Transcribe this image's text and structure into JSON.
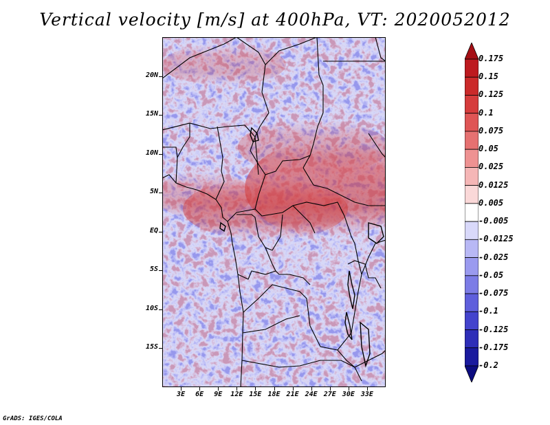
{
  "title": "Vertical velocity [m/s] at 400hPa, VT: 2020052012",
  "credit": "GrADS: IGES/COLA",
  "map": {
    "lon_range": [
      0,
      36
    ],
    "lat_range": [
      -20,
      25
    ],
    "lat_ticks": [
      {
        "label": "20N",
        "lat": 20
      },
      {
        "label": "15N",
        "lat": 15
      },
      {
        "label": "10N",
        "lat": 10
      },
      {
        "label": "5N",
        "lat": 5
      },
      {
        "label": "EQ",
        "lat": 0
      },
      {
        "label": "5S",
        "lat": -5
      },
      {
        "label": "10S",
        "lat": -10
      },
      {
        "label": "15S",
        "lat": -15
      }
    ],
    "lon_ticks": [
      {
        "label": "3E",
        "lon": 3
      },
      {
        "label": "6E",
        "lon": 6
      },
      {
        "label": "9E",
        "lon": 9
      },
      {
        "label": "12E",
        "lon": 12
      },
      {
        "label": "15E",
        "lon": 15
      },
      {
        "label": "18E",
        "lon": 18
      },
      {
        "label": "21E",
        "lon": 21
      },
      {
        "label": "24E",
        "lon": 24
      },
      {
        "label": "27E",
        "lon": 27
      },
      {
        "label": "30E",
        "lon": 30
      },
      {
        "label": "33E",
        "lon": 33
      }
    ]
  },
  "colorbar": {
    "labels": [
      "0.175",
      "0.15",
      "0.125",
      "0.1",
      "0.075",
      "0.05",
      "0.025",
      "0.0125",
      "0.005",
      "-0.005",
      "-0.0125",
      "-0.025",
      "-0.05",
      "-0.075",
      "-0.1",
      "-0.125",
      "-0.175",
      "-0.2"
    ],
    "colors": [
      "#a50f15",
      "#bd1a1f",
      "#cb2a2a",
      "#d63c3c",
      "#df5555",
      "#e67171",
      "#ee9292",
      "#f5b6b6",
      "#fad8d8",
      "#ffffff",
      "#d9d9fa",
      "#b8b8f5",
      "#9a9aef",
      "#7c7ce6",
      "#5f5fdc",
      "#4444cd",
      "#2e2eb8",
      "#1a1a9e",
      "#0c0c80"
    ]
  }
}
